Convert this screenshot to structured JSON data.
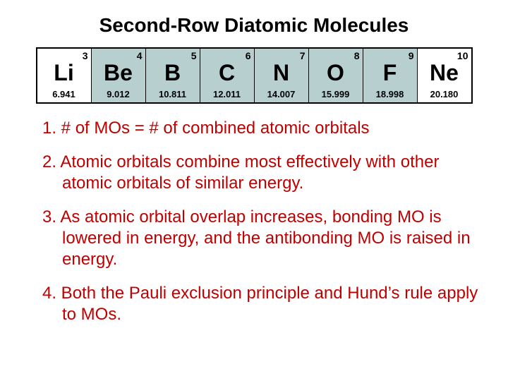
{
  "title": "Second-Row Diatomic Molecules",
  "table": {
    "background_main": "#b7cfcf",
    "background_alt": "#ffffff",
    "border_color": "#000000",
    "cells": [
      {
        "num": "3",
        "sym": "Li",
        "mass": "6.941",
        "white": true
      },
      {
        "num": "4",
        "sym": "Be",
        "mass": "9.012",
        "white": false
      },
      {
        "num": "5",
        "sym": "B",
        "mass": "10.811",
        "white": false
      },
      {
        "num": "6",
        "sym": "C",
        "mass": "12.011",
        "white": false
      },
      {
        "num": "7",
        "sym": "N",
        "mass": "14.007",
        "white": false
      },
      {
        "num": "8",
        "sym": "O",
        "mass": "15.999",
        "white": false
      },
      {
        "num": "9",
        "sym": "F",
        "mass": "18.998",
        "white": false
      },
      {
        "num": "10",
        "sym": "Ne",
        "mass": "20.180",
        "white": true
      }
    ]
  },
  "bullets": [
    "1. # of MOs = # of combined atomic orbitals",
    "2. Atomic orbitals combine most effectively with other atomic orbitals of similar energy.",
    "3. As atomic orbital overlap increases, bonding MO is lowered in energy, and the antibonding MO is raised in energy.",
    "4. Both the Pauli exclusion principle and Hund’s rule apply to MOs."
  ],
  "bullet_color": "#c00000",
  "title_fontsize": 28,
  "symbol_fontsize": 32,
  "mass_fontsize": 13,
  "bullet_fontsize": 24
}
